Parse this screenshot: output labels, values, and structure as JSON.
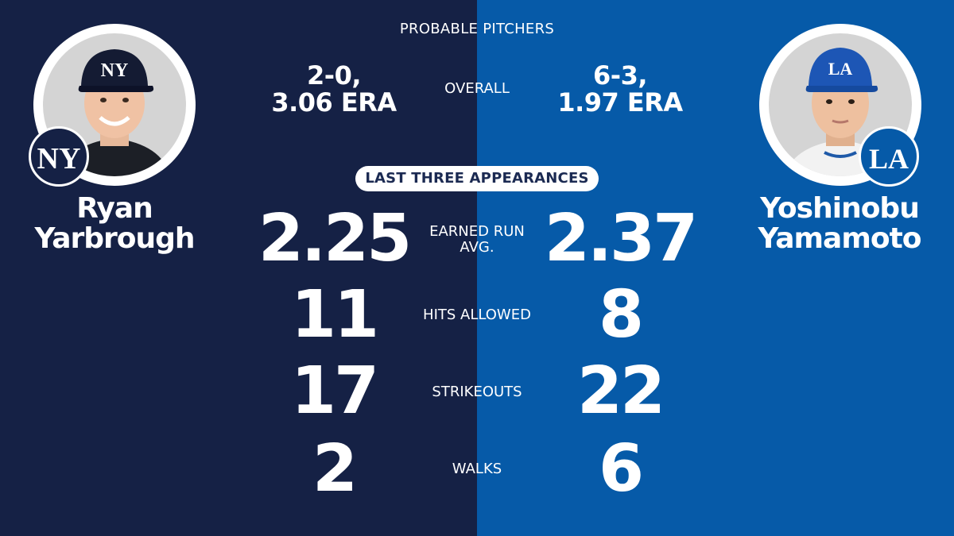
{
  "colors": {
    "left_bg": "#152145",
    "right_bg": "#065aa8",
    "pill_text": "#1b2a52"
  },
  "header": {
    "title": "PROBABLE PITCHERS"
  },
  "section_pill": "LAST THREE APPEARANCES",
  "left_player": {
    "first_name": "Ryan",
    "last_name": "Yarbrough",
    "team_logo": "NY",
    "cap_logo": "NY",
    "overall_line1": "2-0,",
    "overall_line2": "3.06 ERA",
    "era": "2.25",
    "hits_allowed": "11",
    "strikeouts": "17",
    "walks": "2"
  },
  "right_player": {
    "first_name": "Yoshinobu",
    "last_name": "Yamamoto",
    "team_logo": "LA",
    "cap_logo": "LA",
    "overall_line1": "6-3,",
    "overall_line2": "1.97 ERA",
    "era": "2.37",
    "hits_allowed": "8",
    "strikeouts": "22",
    "walks": "6"
  },
  "labels": {
    "overall": "OVERALL",
    "era_line1": "EARNED RUN",
    "era_line2": "AVG.",
    "hits_allowed": "HITS ALLOWED",
    "strikeouts": "STRIKEOUTS",
    "walks": "WALKS"
  },
  "icons": [
    "player-photo-icon",
    "yankees-logo-icon",
    "dodgers-logo-icon"
  ]
}
